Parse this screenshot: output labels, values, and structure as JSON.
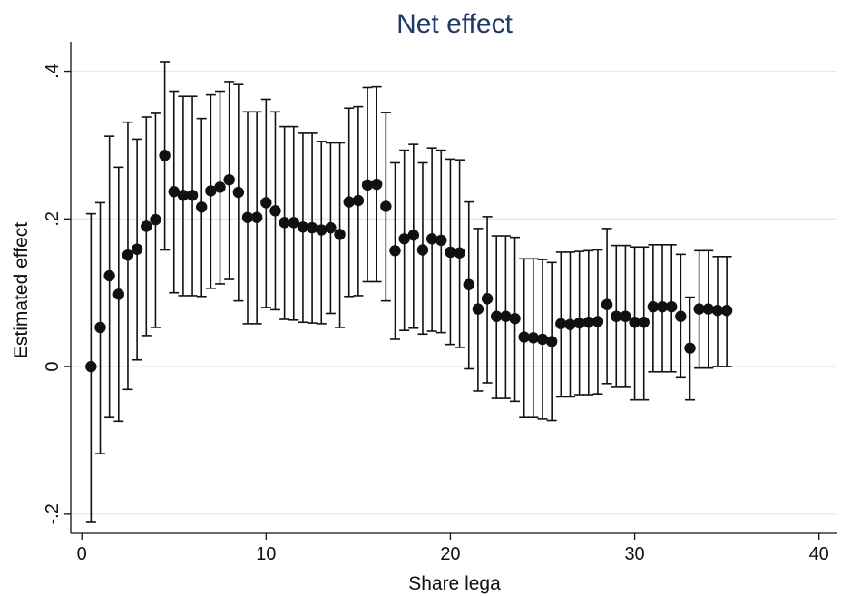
{
  "chart_data": {
    "type": "scatter",
    "title": "Net effect",
    "xlabel": "Share lega",
    "ylabel": "Estimated effect",
    "xlim": [
      -0.6,
      41
    ],
    "ylim": [
      -0.226,
      0.44
    ],
    "xticks": [
      0,
      10,
      20,
      30,
      40
    ],
    "xtick_labels": [
      "0",
      "10",
      "20",
      "30",
      "40"
    ],
    "yticks": [
      -0.2,
      0,
      0.2,
      0.4
    ],
    "ytick_labels": [
      "-.2",
      "0",
      ".2",
      ".4"
    ],
    "grid": true,
    "legend": "none",
    "series": [
      {
        "marker": "filled-circle",
        "error_bars": "capped-ci",
        "color": "#111111",
        "x": [
          0.5,
          1,
          1.5,
          2,
          2.5,
          3,
          3.5,
          4,
          4.5,
          5,
          5.5,
          6,
          6.5,
          7,
          7.5,
          8,
          8.5,
          9,
          9.5,
          10,
          10.5,
          11,
          11.5,
          12,
          12.5,
          13,
          13.5,
          14,
          14.5,
          15,
          15.5,
          16,
          16.5,
          17,
          17.5,
          18,
          18.5,
          19,
          19.5,
          20,
          20.5,
          21,
          21.5,
          22,
          22.5,
          23,
          23.5,
          24,
          24.5,
          25,
          25.5,
          26,
          26.5,
          27,
          27.5,
          28,
          28.5,
          29,
          29.5,
          30,
          30.5,
          31,
          31.5,
          32,
          32.5,
          33,
          33.5,
          34,
          34.5,
          35
        ],
        "y": [
          0.0,
          0.053,
          0.123,
          0.098,
          0.151,
          0.159,
          0.19,
          0.199,
          0.286,
          0.237,
          0.232,
          0.232,
          0.216,
          0.238,
          0.243,
          0.253,
          0.236,
          0.202,
          0.202,
          0.222,
          0.211,
          0.195,
          0.195,
          0.189,
          0.188,
          0.185,
          0.188,
          0.179,
          0.223,
          0.225,
          0.246,
          0.247,
          0.217,
          0.157,
          0.173,
          0.178,
          0.158,
          0.173,
          0.171,
          0.155,
          0.154,
          0.111,
          0.078,
          0.092,
          0.068,
          0.068,
          0.065,
          0.04,
          0.039,
          0.037,
          0.034,
          0.058,
          0.057,
          0.059,
          0.06,
          0.061,
          0.084,
          0.068,
          0.068,
          0.06,
          0.06,
          0.081,
          0.081,
          0.081,
          0.068,
          0.025,
          0.078,
          0.078,
          0.076,
          0.076
        ],
        "lower": [
          -0.21,
          -0.118,
          -0.069,
          -0.074,
          -0.031,
          0.009,
          0.042,
          0.053,
          0.158,
          0.1,
          0.096,
          0.096,
          0.095,
          0.106,
          0.112,
          0.118,
          0.089,
          0.058,
          0.058,
          0.08,
          0.077,
          0.064,
          0.063,
          0.06,
          0.059,
          0.058,
          0.072,
          0.053,
          0.095,
          0.096,
          0.115,
          0.115,
          0.089,
          0.037,
          0.049,
          0.052,
          0.044,
          0.048,
          0.046,
          0.03,
          0.026,
          -0.003,
          -0.033,
          -0.022,
          -0.043,
          -0.043,
          -0.047,
          -0.069,
          -0.069,
          -0.071,
          -0.073,
          -0.041,
          -0.041,
          -0.038,
          -0.038,
          -0.037,
          -0.023,
          -0.028,
          -0.028,
          -0.045,
          -0.045,
          -0.007,
          -0.007,
          -0.007,
          -0.015,
          -0.045,
          -0.002,
          -0.002,
          0.0,
          0.0
        ],
        "upper": [
          0.207,
          0.222,
          0.312,
          0.27,
          0.331,
          0.308,
          0.338,
          0.343,
          0.413,
          0.373,
          0.366,
          0.366,
          0.336,
          0.368,
          0.373,
          0.386,
          0.382,
          0.345,
          0.345,
          0.362,
          0.345,
          0.325,
          0.325,
          0.316,
          0.316,
          0.305,
          0.303,
          0.303,
          0.35,
          0.352,
          0.378,
          0.379,
          0.344,
          0.276,
          0.293,
          0.301,
          0.276,
          0.296,
          0.293,
          0.281,
          0.28,
          0.223,
          0.187,
          0.203,
          0.177,
          0.177,
          0.175,
          0.146,
          0.146,
          0.145,
          0.141,
          0.155,
          0.155,
          0.156,
          0.157,
          0.158,
          0.187,
          0.164,
          0.164,
          0.162,
          0.162,
          0.165,
          0.165,
          0.165,
          0.152,
          0.094,
          0.157,
          0.157,
          0.149,
          0.149
        ]
      }
    ]
  }
}
